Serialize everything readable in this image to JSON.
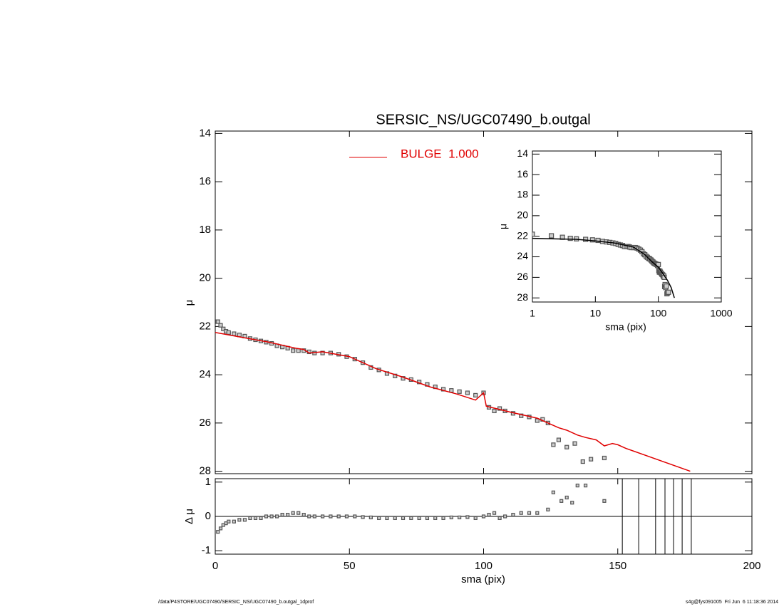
{
  "chart_data": [
    {
      "type": "main",
      "title": "SERSIC_NS/UGC07490_b.outgal",
      "ylabel": "μ",
      "xlim": [
        0,
        200
      ],
      "xticks": [
        0,
        50,
        100,
        150,
        200
      ],
      "xtick_labels": false,
      "ylim": [
        28.1,
        13.9
      ],
      "yticks": [
        14,
        16,
        18,
        20,
        22,
        24,
        26,
        28
      ],
      "points": {
        "color": "#555555",
        "x": [
          1,
          2,
          3,
          4,
          5,
          7,
          9,
          11,
          13,
          15,
          17,
          19,
          21,
          23,
          25,
          27,
          29,
          31,
          33,
          35,
          37,
          40,
          43,
          46,
          49,
          52,
          55,
          58,
          61,
          64,
          67,
          70,
          73,
          76,
          79,
          82,
          85,
          88,
          91,
          94,
          97,
          100,
          102,
          104,
          106,
          108,
          111,
          114,
          117,
          120,
          122,
          124,
          126,
          128,
          131,
          134,
          137,
          140,
          145
        ],
        "values": [
          21.8,
          21.95,
          22.1,
          22.2,
          22.25,
          22.3,
          22.35,
          22.4,
          22.5,
          22.55,
          22.6,
          22.65,
          22.7,
          22.8,
          22.85,
          22.9,
          23.0,
          23.0,
          23.0,
          23.05,
          23.1,
          23.1,
          23.1,
          23.15,
          23.25,
          23.35,
          23.5,
          23.7,
          23.8,
          23.95,
          24.05,
          24.15,
          24.2,
          24.3,
          24.4,
          24.5,
          24.6,
          24.65,
          24.7,
          24.75,
          24.85,
          24.75,
          25.35,
          25.5,
          25.4,
          25.5,
          25.6,
          25.7,
          25.75,
          25.9,
          25.85,
          26.0,
          26.9,
          26.7,
          27.0,
          26.85,
          27.6,
          27.5,
          27.45
        ]
      },
      "model": {
        "name": "BULGE  1.000",
        "color": "#e00000",
        "x": [
          0,
          10,
          20,
          30,
          33,
          35,
          40,
          50,
          55,
          60,
          70,
          80,
          90,
          97,
          100,
          101,
          110,
          120,
          125,
          128,
          131,
          135,
          138,
          142,
          145,
          148,
          150,
          153,
          177
        ],
        "values": [
          22.25,
          22.45,
          22.65,
          22.9,
          22.95,
          23.1,
          23.05,
          23.25,
          23.5,
          23.75,
          24.1,
          24.5,
          24.8,
          25.05,
          24.75,
          25.3,
          25.55,
          25.8,
          26.05,
          26.2,
          26.3,
          26.5,
          26.6,
          26.7,
          26.95,
          26.85,
          26.9,
          27.05,
          28.0
        ]
      }
    },
    {
      "type": "residual",
      "xlabel": "sma (pix)",
      "ylabel": "Δ μ",
      "xlim": [
        0,
        200
      ],
      "xticks": [
        0,
        50,
        100,
        150,
        200
      ],
      "xtick_labels": true,
      "ylim": [
        -1.1,
        1.1
      ],
      "yticks": [
        -1,
        0,
        1
      ],
      "points": {
        "color": "#555555",
        "x": [
          1,
          2,
          3,
          4,
          5,
          7,
          9,
          11,
          13,
          15,
          17,
          19,
          21,
          23,
          25,
          27,
          29,
          31,
          33,
          35,
          37,
          40,
          43,
          46,
          49,
          52,
          55,
          58,
          61,
          64,
          67,
          70,
          73,
          76,
          79,
          82,
          85,
          88,
          91,
          94,
          97,
          100,
          102,
          104,
          106,
          108,
          111,
          114,
          117,
          120,
          124,
          126,
          129,
          131,
          133,
          135,
          138,
          145
        ],
        "values": [
          -0.45,
          -0.35,
          -0.25,
          -0.2,
          -0.15,
          -0.15,
          -0.1,
          -0.1,
          -0.05,
          -0.05,
          -0.05,
          0,
          0,
          0,
          0.05,
          0.05,
          0.1,
          0.1,
          0.05,
          0,
          0,
          0,
          0,
          0,
          0,
          0,
          -0.02,
          -0.03,
          -0.05,
          -0.05,
          -0.05,
          -0.05,
          -0.05,
          -0.05,
          -0.05,
          -0.05,
          -0.05,
          -0.03,
          -0.03,
          -0.02,
          -0.05,
          0,
          0.05,
          0.1,
          -0.05,
          0,
          0.05,
          0.1,
          0.1,
          0.1,
          0.2,
          0.7,
          0.45,
          0.55,
          0.4,
          0.9,
          0.9,
          0.45
        ]
      },
      "vlines": [
        151.7,
        157.8,
        164.1,
        167.6,
        170.8,
        174,
        177.4
      ]
    },
    {
      "type": "inset",
      "xlabel": "sma (pix)",
      "ylabel": "μ",
      "log_x": true,
      "xlim": [
        1,
        1000
      ],
      "xticks": [
        1,
        10,
        100,
        1000
      ],
      "xtick_labels": true,
      "ylim": [
        28.4,
        13.7
      ],
      "yticks": [
        14,
        16,
        18,
        20,
        22,
        24,
        26,
        28
      ],
      "model": {
        "color": "#000000",
        "x": [
          1,
          2,
          5,
          10,
          20,
          40,
          60,
          80,
          100,
          120,
          140,
          160,
          180
        ],
        "values": [
          22.2,
          22.25,
          22.3,
          22.45,
          22.65,
          23.05,
          23.75,
          24.5,
          25.0,
          25.7,
          26.3,
          27.0,
          28.0
        ]
      }
    }
  ],
  "footer": {
    "left": "/data/P4STORE/UGC07490/SERSIC_NS/UGC07490_b.outgal_1dprof",
    "right": "s4g@fys091005  Fri Jun  6 11:18:36 2014"
  }
}
